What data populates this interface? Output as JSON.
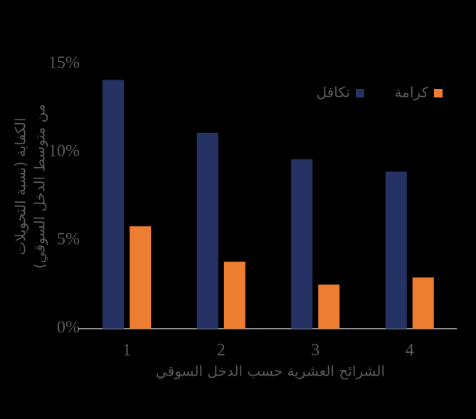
{
  "chart_data": {
    "type": "bar",
    "xlabel": "الشرائح العشرية حسب الدخل السوقي",
    "ylabel": [
      "الكفاية (نسبة التحويلات",
      "من متوسط الدخل السوقي)"
    ],
    "categories": [
      "1",
      "2",
      "3",
      "4"
    ],
    "series": [
      {
        "name": "تكافل",
        "color": "#243264",
        "values": [
          14.1,
          11.1,
          9.6,
          8.9
        ]
      },
      {
        "name": "كرامة",
        "color": "#ed7d31",
        "values": [
          5.8,
          3.8,
          2.5,
          2.9
        ]
      }
    ],
    "ylim": [
      0,
      15
    ],
    "yticks": [
      {
        "value": 0,
        "label": "0%"
      },
      {
        "value": 5,
        "label": "5%"
      },
      {
        "value": 10,
        "label": "10%"
      },
      {
        "value": 15,
        "label": "15%"
      }
    ],
    "legend": "top-right"
  }
}
